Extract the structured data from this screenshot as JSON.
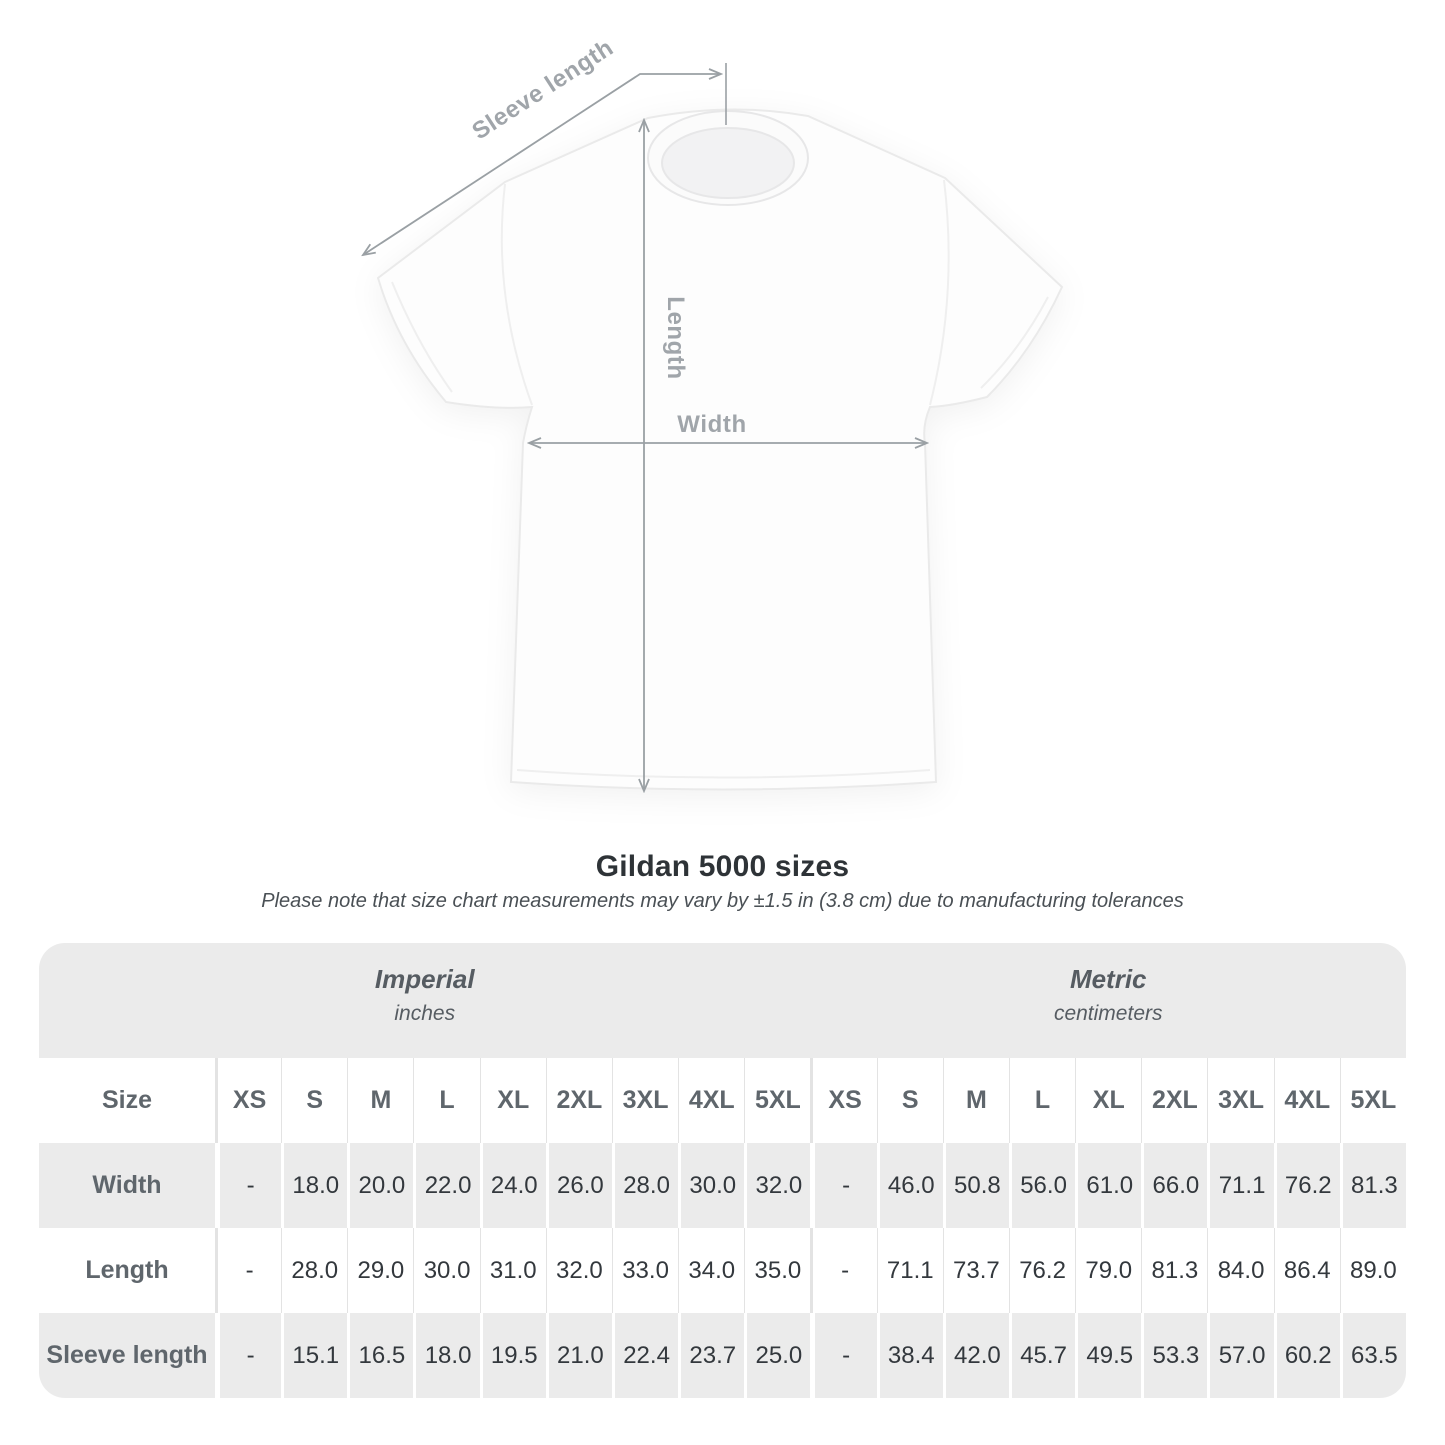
{
  "diagram": {
    "labels": {
      "sleeve_length": "Sleeve length",
      "length": "Length",
      "width": "Width"
    },
    "line_color": "#9aa0a4",
    "label_color": "#a0a5aa"
  },
  "title": "Gildan 5000 sizes",
  "subtitle": "Please note that size chart measurements may vary by ±1.5 in (3.8 cm) due to manufacturing tolerances",
  "table": {
    "corner_label": "Size",
    "sections": [
      {
        "name": "Imperial",
        "unit": "inches"
      },
      {
        "name": "Metric",
        "unit": "centimeters"
      }
    ],
    "sizes": [
      "XS",
      "S",
      "M",
      "L",
      "XL",
      "2XL",
      "3XL",
      "4XL",
      "5XL"
    ],
    "rows": [
      {
        "label": "Width",
        "imperial": [
          "-",
          "18.0",
          "20.0",
          "22.0",
          "24.0",
          "26.0",
          "28.0",
          "30.0",
          "32.0"
        ],
        "metric": [
          "-",
          "46.0",
          "50.8",
          "56.0",
          "61.0",
          "66.0",
          "71.1",
          "76.2",
          "81.3"
        ]
      },
      {
        "label": "Length",
        "imperial": [
          "-",
          "28.0",
          "29.0",
          "30.0",
          "31.0",
          "32.0",
          "33.0",
          "34.0",
          "35.0"
        ],
        "metric": [
          "-",
          "71.1",
          "73.7",
          "76.2",
          "79.0",
          "81.3",
          "84.0",
          "86.4",
          "89.0"
        ]
      },
      {
        "label": "Sleeve length",
        "imperial": [
          "-",
          "15.1",
          "16.5",
          "18.0",
          "19.5",
          "21.0",
          "22.4",
          "23.7",
          "25.0"
        ],
        "metric": [
          "-",
          "38.4",
          "42.0",
          "45.7",
          "49.5",
          "53.3",
          "57.0",
          "60.2",
          "63.5"
        ]
      }
    ],
    "colors": {
      "band_bg": "#ebebeb",
      "row_alt_bg": "#ebebeb",
      "header_text": "#5f666c",
      "value_text": "#33383d"
    }
  }
}
